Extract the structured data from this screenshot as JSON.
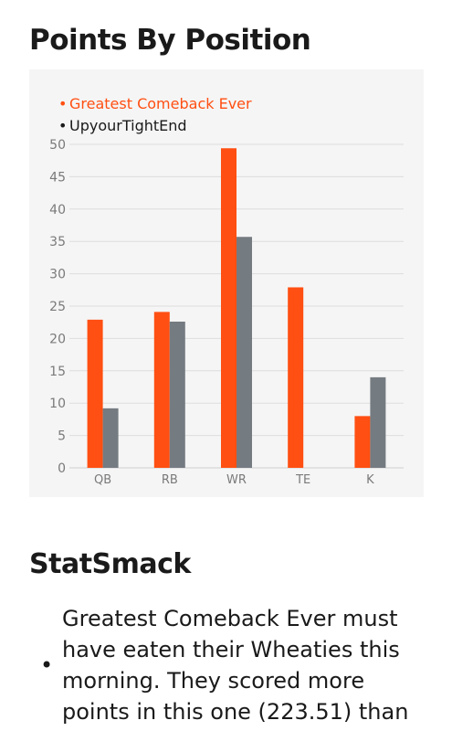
{
  "section_title": "Points By Position",
  "stat_title": "StatSmack",
  "stat_text": "Greatest Comeback Ever must have eaten their Wheaties this morning. They scored more points in this one (223.51) than",
  "colors": {
    "series1": "#ff4f12",
    "series2": "#747b81",
    "grid": "#dddddd",
    "panel": "#f5f5f5"
  },
  "chart_data": {
    "type": "bar",
    "categories": [
      "QB",
      "RB",
      "WR",
      "TE",
      "K"
    ],
    "series": [
      {
        "name": "Greatest Comeback Ever",
        "values": [
          22.9,
          24.1,
          49.4,
          27.9,
          8.0
        ]
      },
      {
        "name": "UpyourTightEnd",
        "values": [
          9.2,
          22.6,
          35.7,
          0,
          14.0
        ]
      }
    ],
    "ylim": [
      0,
      50
    ],
    "yticks": [
      0,
      5,
      10,
      15,
      20,
      25,
      30,
      35,
      40,
      45,
      50
    ],
    "grid": true,
    "legend_position": "top-left"
  }
}
